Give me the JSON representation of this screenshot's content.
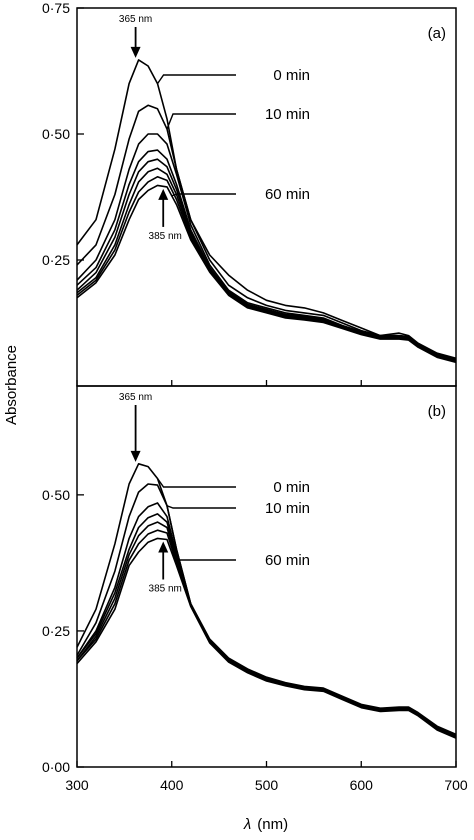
{
  "figure": {
    "ylabel": "Absorbance",
    "xlabel": "λ (nm)",
    "xlabel_symbol": "λ",
    "xlabel_unit": "(nm)",
    "xticks": [
      "300",
      "400",
      "500",
      "600",
      "700"
    ]
  },
  "chart_data": [
    {
      "panel": "(a)",
      "type": "line",
      "xlabel": "λ (nm)",
      "ylabel": "Absorbance",
      "xlim": [
        300,
        700
      ],
      "ylim": [
        0.0,
        0.75
      ],
      "yticks": [
        {
          "value": 0.25,
          "label": "0·25"
        },
        {
          "value": 0.5,
          "label": "0·50"
        },
        {
          "value": 0.75,
          "label": "0·75"
        }
      ],
      "annotations": {
        "peak_start": "365 nm",
        "peak_end": "385 nm",
        "time_labels": [
          "0 min",
          "10 min",
          "60 min"
        ]
      },
      "x": [
        300,
        320,
        340,
        355,
        365,
        375,
        385,
        395,
        405,
        420,
        440,
        460,
        480,
        500,
        520,
        540,
        560,
        580,
        600,
        620,
        640,
        650,
        660,
        680,
        700
      ],
      "series": [
        {
          "values": [
            0.28,
            0.33,
            0.47,
            0.6,
            0.647,
            0.635,
            0.6,
            0.53,
            0.43,
            0.33,
            0.26,
            0.22,
            0.19,
            0.17,
            0.16,
            0.155,
            0.145,
            0.13,
            0.115,
            0.1,
            0.105,
            0.1,
            0.085,
            0.065,
            0.055
          ]
        },
        {
          "values": [
            0.24,
            0.28,
            0.38,
            0.49,
            0.545,
            0.557,
            0.55,
            0.51,
            0.43,
            0.33,
            0.25,
            0.2,
            0.175,
            0.16,
            0.15,
            0.145,
            0.14,
            0.125,
            0.11,
            0.1,
            0.1,
            0.098,
            0.083,
            0.063,
            0.053
          ]
        },
        {
          "values": [
            0.21,
            0.25,
            0.33,
            0.43,
            0.48,
            0.5,
            0.5,
            0.48,
            0.42,
            0.32,
            0.24,
            0.19,
            0.165,
            0.155,
            0.145,
            0.14,
            0.135,
            0.12,
            0.108,
            0.098,
            0.098,
            0.096,
            0.082,
            0.062,
            0.052
          ]
        },
        {
          "values": [
            0.2,
            0.235,
            0.31,
            0.4,
            0.445,
            0.465,
            0.468,
            0.45,
            0.4,
            0.31,
            0.235,
            0.187,
            0.162,
            0.152,
            0.142,
            0.138,
            0.133,
            0.118,
            0.106,
            0.097,
            0.097,
            0.095,
            0.081,
            0.061,
            0.051
          ]
        },
        {
          "values": [
            0.19,
            0.225,
            0.295,
            0.38,
            0.425,
            0.445,
            0.45,
            0.435,
            0.39,
            0.305,
            0.232,
            0.185,
            0.16,
            0.15,
            0.14,
            0.136,
            0.131,
            0.117,
            0.105,
            0.096,
            0.096,
            0.094,
            0.08,
            0.06,
            0.05
          ]
        },
        {
          "values": [
            0.185,
            0.215,
            0.28,
            0.36,
            0.405,
            0.425,
            0.432,
            0.42,
            0.38,
            0.3,
            0.23,
            0.183,
            0.158,
            0.148,
            0.138,
            0.134,
            0.129,
            0.116,
            0.104,
            0.095,
            0.095,
            0.093,
            0.079,
            0.059,
            0.049
          ]
        },
        {
          "values": [
            0.18,
            0.21,
            0.27,
            0.345,
            0.385,
            0.405,
            0.415,
            0.408,
            0.37,
            0.295,
            0.228,
            0.181,
            0.156,
            0.146,
            0.136,
            0.132,
            0.127,
            0.115,
            0.103,
            0.094,
            0.094,
            0.092,
            0.078,
            0.058,
            0.048
          ]
        },
        {
          "values": [
            0.175,
            0.205,
            0.26,
            0.33,
            0.37,
            0.388,
            0.398,
            0.395,
            0.36,
            0.29,
            0.226,
            0.18,
            0.155,
            0.145,
            0.135,
            0.131,
            0.126,
            0.114,
            0.102,
            0.093,
            0.093,
            0.091,
            0.077,
            0.057,
            0.047
          ]
        }
      ]
    },
    {
      "panel": "(b)",
      "type": "line",
      "xlabel": "λ (nm)",
      "ylabel": "Absorbance",
      "xlim": [
        300,
        700
      ],
      "ylim": [
        0.0,
        0.7
      ],
      "yticks": [
        {
          "value": 0.0,
          "label": "0·00"
        },
        {
          "value": 0.25,
          "label": "0·25"
        },
        {
          "value": 0.5,
          "label": "0·50"
        }
      ],
      "annotations": {
        "peak_start": "365 nm",
        "peak_end": "385 nm",
        "time_labels": [
          "0 min",
          "10 min",
          "60 min"
        ]
      },
      "x": [
        300,
        320,
        340,
        355,
        365,
        375,
        385,
        395,
        405,
        420,
        440,
        460,
        480,
        500,
        520,
        540,
        560,
        580,
        600,
        620,
        640,
        650,
        660,
        680,
        700
      ],
      "series": [
        {
          "values": [
            0.22,
            0.29,
            0.41,
            0.52,
            0.557,
            0.552,
            0.53,
            0.48,
            0.4,
            0.3,
            0.235,
            0.2,
            0.18,
            0.165,
            0.155,
            0.148,
            0.145,
            0.13,
            0.115,
            0.108,
            0.11,
            0.11,
            0.1,
            0.075,
            0.06
          ]
        },
        {
          "values": [
            0.205,
            0.265,
            0.36,
            0.46,
            0.505,
            0.52,
            0.518,
            0.48,
            0.4,
            0.3,
            0.233,
            0.198,
            0.178,
            0.163,
            0.154,
            0.147,
            0.144,
            0.129,
            0.114,
            0.107,
            0.109,
            0.109,
            0.099,
            0.073,
            0.058
          ]
        },
        {
          "values": [
            0.2,
            0.25,
            0.33,
            0.42,
            0.46,
            0.478,
            0.485,
            0.46,
            0.39,
            0.3,
            0.232,
            0.197,
            0.177,
            0.162,
            0.153,
            0.146,
            0.143,
            0.128,
            0.113,
            0.106,
            0.108,
            0.108,
            0.098,
            0.072,
            0.057
          ]
        },
        {
          "values": [
            0.2,
            0.245,
            0.32,
            0.4,
            0.44,
            0.458,
            0.465,
            0.45,
            0.385,
            0.298,
            0.231,
            0.196,
            0.176,
            0.161,
            0.152,
            0.145,
            0.142,
            0.127,
            0.112,
            0.105,
            0.107,
            0.107,
            0.097,
            0.071,
            0.056
          ]
        },
        {
          "values": [
            0.195,
            0.24,
            0.31,
            0.39,
            0.425,
            0.443,
            0.45,
            0.44,
            0.38,
            0.297,
            0.23,
            0.195,
            0.175,
            0.16,
            0.151,
            0.144,
            0.141,
            0.126,
            0.111,
            0.104,
            0.106,
            0.106,
            0.096,
            0.07,
            0.055
          ]
        },
        {
          "values": [
            0.195,
            0.235,
            0.3,
            0.38,
            0.41,
            0.428,
            0.435,
            0.43,
            0.375,
            0.296,
            0.229,
            0.194,
            0.174,
            0.159,
            0.15,
            0.143,
            0.14,
            0.125,
            0.11,
            0.103,
            0.105,
            0.105,
            0.095,
            0.069,
            0.054
          ]
        },
        {
          "values": [
            0.19,
            0.23,
            0.29,
            0.37,
            0.395,
            0.413,
            0.42,
            0.418,
            0.37,
            0.295,
            0.228,
            0.193,
            0.173,
            0.158,
            0.149,
            0.142,
            0.139,
            0.124,
            0.109,
            0.102,
            0.104,
            0.104,
            0.094,
            0.068,
            0.053
          ]
        }
      ]
    }
  ]
}
